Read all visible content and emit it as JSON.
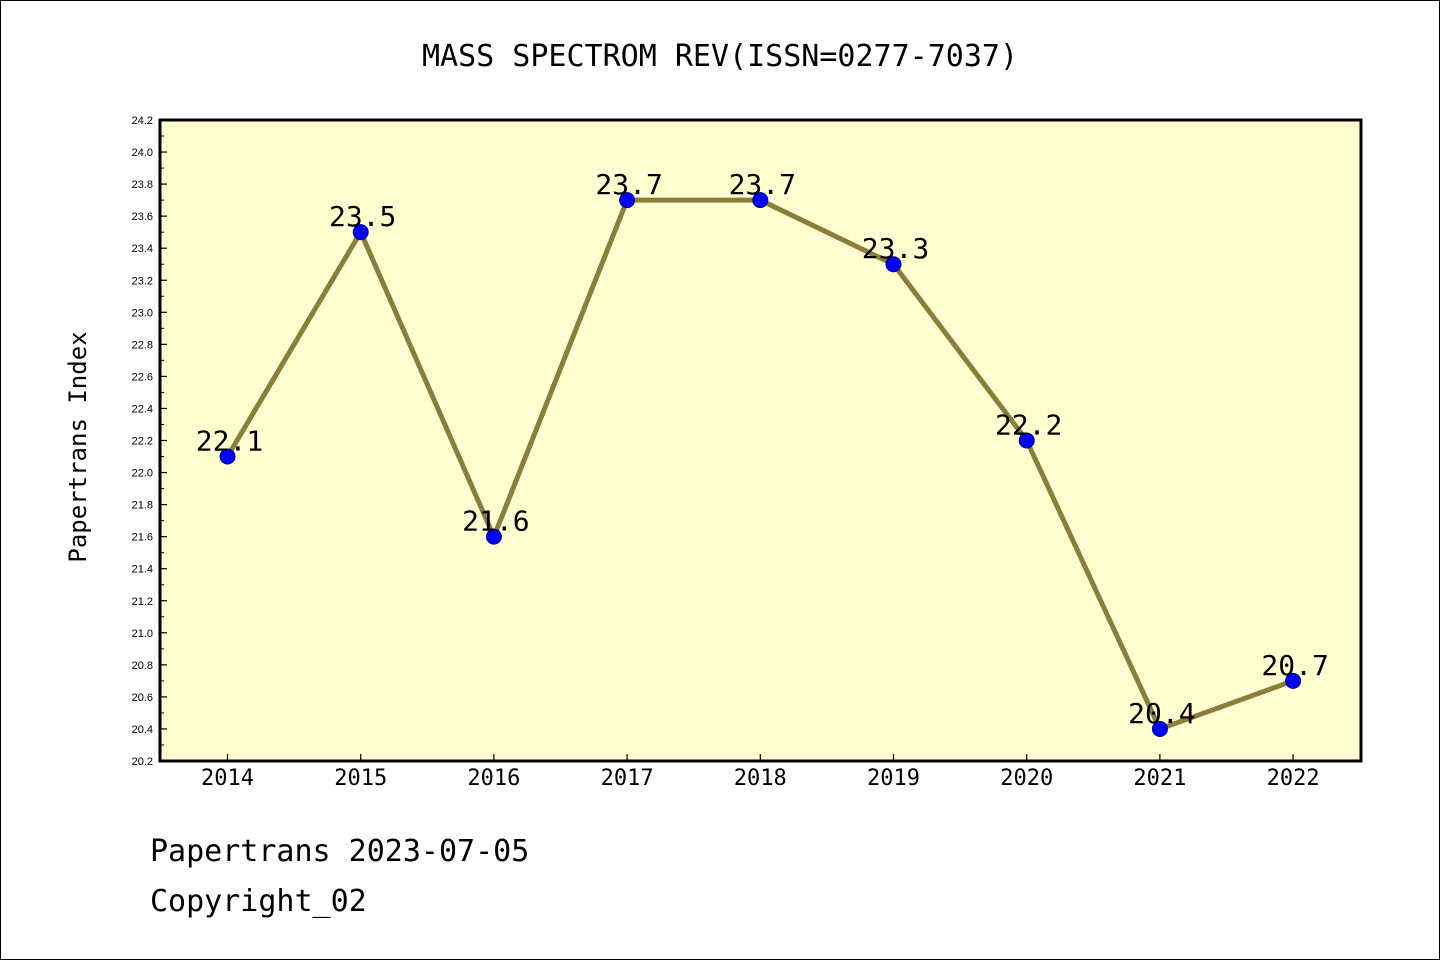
{
  "chart_data": {
    "type": "line",
    "title": "MASS SPECTROM REV(ISSN=0277-7037)",
    "ylabel": "Papertrans Index",
    "xlabel": "",
    "categories": [
      "2014",
      "2015",
      "2016",
      "2017",
      "2018",
      "2019",
      "2020",
      "2021",
      "2022"
    ],
    "series": [
      {
        "values": [
          22.1,
          23.5,
          21.6,
          23.7,
          23.7,
          23.3,
          22.2,
          20.4,
          20.7
        ],
        "labels": [
          "22.1",
          "23.5",
          "21.6",
          "23.7",
          "23.7",
          "23.3",
          "22.2",
          "20.4",
          "20.7"
        ]
      }
    ],
    "ylim": [
      20.2,
      24.2
    ],
    "ytick_step": 0.2,
    "ytick_labels": [
      "20.2",
      "20.4",
      "20.6",
      "20.8",
      "21.0",
      "21.2",
      "21.4",
      "21.6",
      "21.8",
      "22.0",
      "22.2",
      "22.4",
      "22.6",
      "22.8",
      "23.0",
      "23.2",
      "23.4",
      "23.6",
      "23.8",
      "24.0",
      "24.2"
    ],
    "grid": false,
    "legend": "none",
    "colors": {
      "plot_background": "#ffffd0",
      "line": "#8b7d3a",
      "marker": "#0000ff",
      "marker_edge": "#00008b",
      "axis": "#000000"
    }
  },
  "footer": {
    "line1": "Papertrans 2023-07-05",
    "line2": "Copyright_02"
  }
}
